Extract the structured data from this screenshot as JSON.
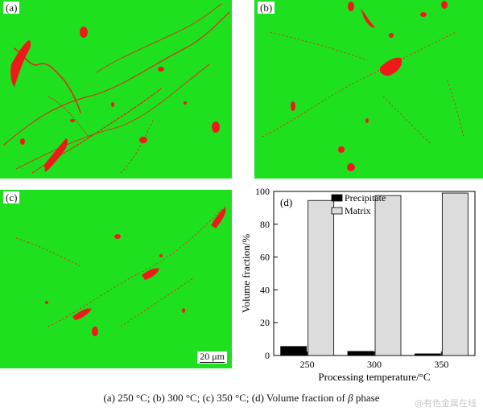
{
  "panels": {
    "a": {
      "label": "(a)"
    },
    "b": {
      "label": "(b)"
    },
    "c": {
      "label": "(c)",
      "scale_bar": "20 μm"
    },
    "d": {
      "label": "(d)"
    }
  },
  "colors": {
    "matrix_phase": "#1fe01f",
    "beta_phase": "#ee1a1a"
  },
  "chart_data": {
    "type": "bar",
    "categories": [
      "250",
      "300",
      "350"
    ],
    "series": [
      {
        "name": "Precipitate",
        "values": [
          5.5,
          2.5,
          1.0
        ],
        "color": "#000000"
      },
      {
        "name": "Matrix",
        "values": [
          94.5,
          97.5,
          99.0
        ],
        "color": "#dcdcdc"
      }
    ],
    "xlabel": "Processing temperature/°C",
    "ylabel": "Volume fraction/%",
    "ylim": [
      0,
      100
    ],
    "yticks": [
      0,
      20,
      40,
      60,
      80,
      100
    ],
    "legend": "top-left",
    "grid": false
  },
  "caption": {
    "parts": [
      "(a) 250 °C; (b) 300 °C; (c) 350 °C; (d) Volume fraction of ",
      "β",
      " phase"
    ]
  },
  "watermark": "@有色金属在线"
}
